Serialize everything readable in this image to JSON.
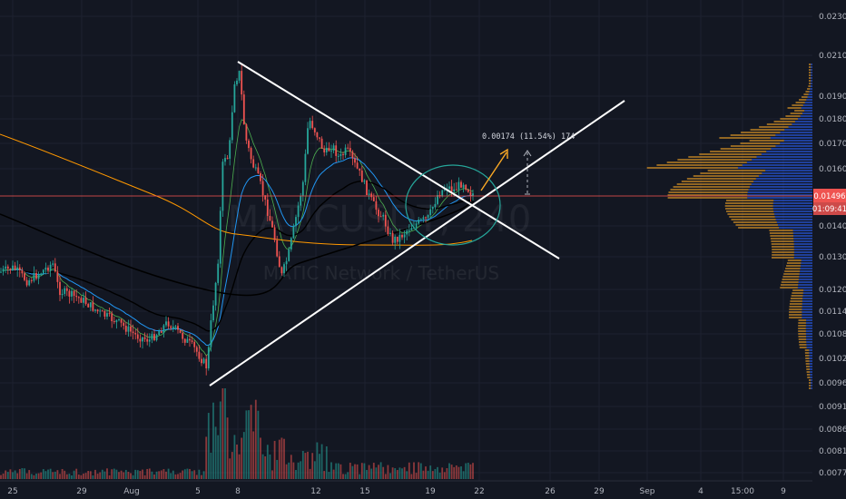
{
  "chart_data": {
    "type": "candlestick",
    "y_ticks": [
      "0.02300",
      "0.02100",
      "0.01900",
      "0.01800",
      "0.01700",
      "0.01600",
      "0.01400",
      "0.01300",
      "0.01200",
      "0.01140",
      "0.01080",
      "0.01020",
      "0.00960",
      "0.00910",
      "0.00860",
      "0.00815",
      "0.00775"
    ],
    "x_ticks": [
      "25",
      "29",
      "Aug",
      "5",
      "8",
      "12",
      "15",
      "19",
      "22",
      "26",
      "29",
      "Sep",
      "4",
      "15:00",
      "9"
    ],
    "watermark_symbol": "MATICUSDT, 240",
    "watermark_name": "MATIC Network / TetherUS",
    "current_price": "0.01496",
    "countdown": "01:09:41",
    "measure_label": "0.00174 (11.54%) 174",
    "colors": {
      "bull": "#26a69a",
      "bear": "#ef5350",
      "ema_short": "#2196f3",
      "ema_long": "#ff9800",
      "sma": "#000000",
      "trendline": "#ffffff",
      "price_line": "#ef5350",
      "profile_up": "#f9a825",
      "profile_down": "#2962ff"
    }
  }
}
